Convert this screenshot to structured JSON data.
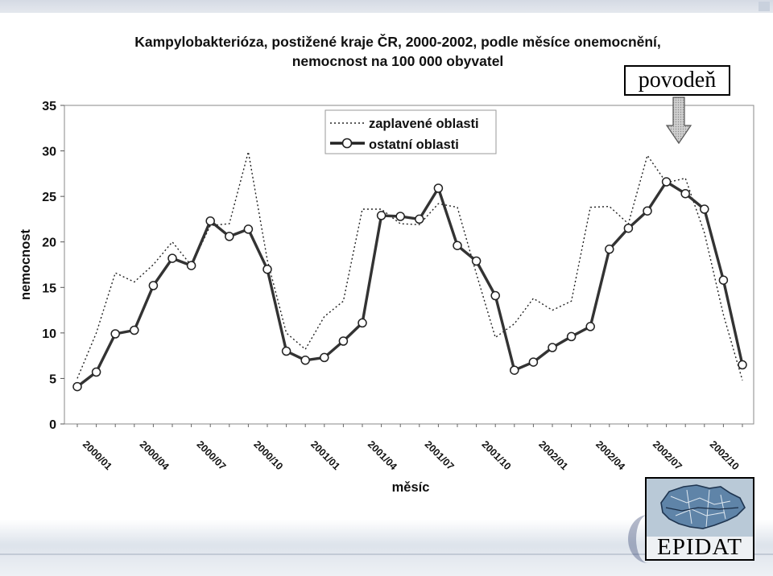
{
  "annotation": {
    "label": "povodeň"
  },
  "logo": {
    "text": "EPIDAT"
  },
  "chart_data": {
    "type": "line",
    "title": "Kampylobakterióza, postižené kraje ČR, 2000-2002, podle měsíce onemocnění,",
    "subtitle": "nemocnost na 100 000 obyvatel",
    "xlabel": "měsíc",
    "ylabel": "nemocnost",
    "ylim": [
      0,
      35
    ],
    "yticks": [
      0,
      5,
      10,
      15,
      20,
      25,
      30,
      35
    ],
    "grid": false,
    "legend_position": "top-center",
    "categories": [
      "2000/01",
      "2000/02",
      "2000/03",
      "2000/04",
      "2000/05",
      "2000/06",
      "2000/07",
      "2000/08",
      "2000/09",
      "2000/10",
      "2000/11",
      "2000/12",
      "2001/01",
      "2001/02",
      "2001/03",
      "2001/04",
      "2001/05",
      "2001/06",
      "2001/07",
      "2001/08",
      "2001/09",
      "2001/10",
      "2001/11",
      "2001/12",
      "2002/01",
      "2002/02",
      "2002/03",
      "2002/04",
      "2002/05",
      "2002/06",
      "2002/07",
      "2002/08",
      "2002/09",
      "2002/10",
      "2002/11",
      "2002/12"
    ],
    "x_tick_labels": [
      "2000/01",
      "2000/04",
      "2000/07",
      "2000/10",
      "2001/01",
      "2001/04",
      "2001/07",
      "2001/10",
      "2002/01",
      "2002/04",
      "2002/07",
      "2002/10"
    ],
    "series": [
      {
        "name": "zaplavené oblasti",
        "style": "dotted",
        "color": "#222222",
        "values": [
          5.0,
          10.0,
          16.6,
          15.6,
          17.5,
          20.0,
          17.4,
          21.8,
          22.0,
          29.9,
          18.0,
          10.0,
          8.2,
          11.8,
          13.5,
          23.6,
          23.6,
          22.0,
          21.9,
          24.2,
          23.8,
          16.5,
          9.5,
          11.0,
          13.8,
          12.5,
          13.5,
          23.8,
          23.9,
          22.0,
          29.5,
          26.5,
          27.0,
          21.0,
          12.0,
          4.8
        ]
      },
      {
        "name": "ostatní oblasti",
        "style": "solid-markers",
        "color": "#333333",
        "values": [
          4.1,
          5.7,
          9.9,
          10.3,
          15.2,
          18.2,
          17.4,
          22.3,
          20.6,
          21.4,
          17.0,
          8.0,
          7.0,
          7.3,
          9.1,
          11.1,
          22.9,
          22.8,
          22.5,
          25.9,
          19.6,
          17.9,
          14.1,
          5.9,
          6.8,
          8.4,
          9.6,
          10.7,
          19.2,
          21.5,
          23.4,
          26.6,
          25.3,
          23.6,
          15.8,
          6.5
        ]
      }
    ]
  }
}
